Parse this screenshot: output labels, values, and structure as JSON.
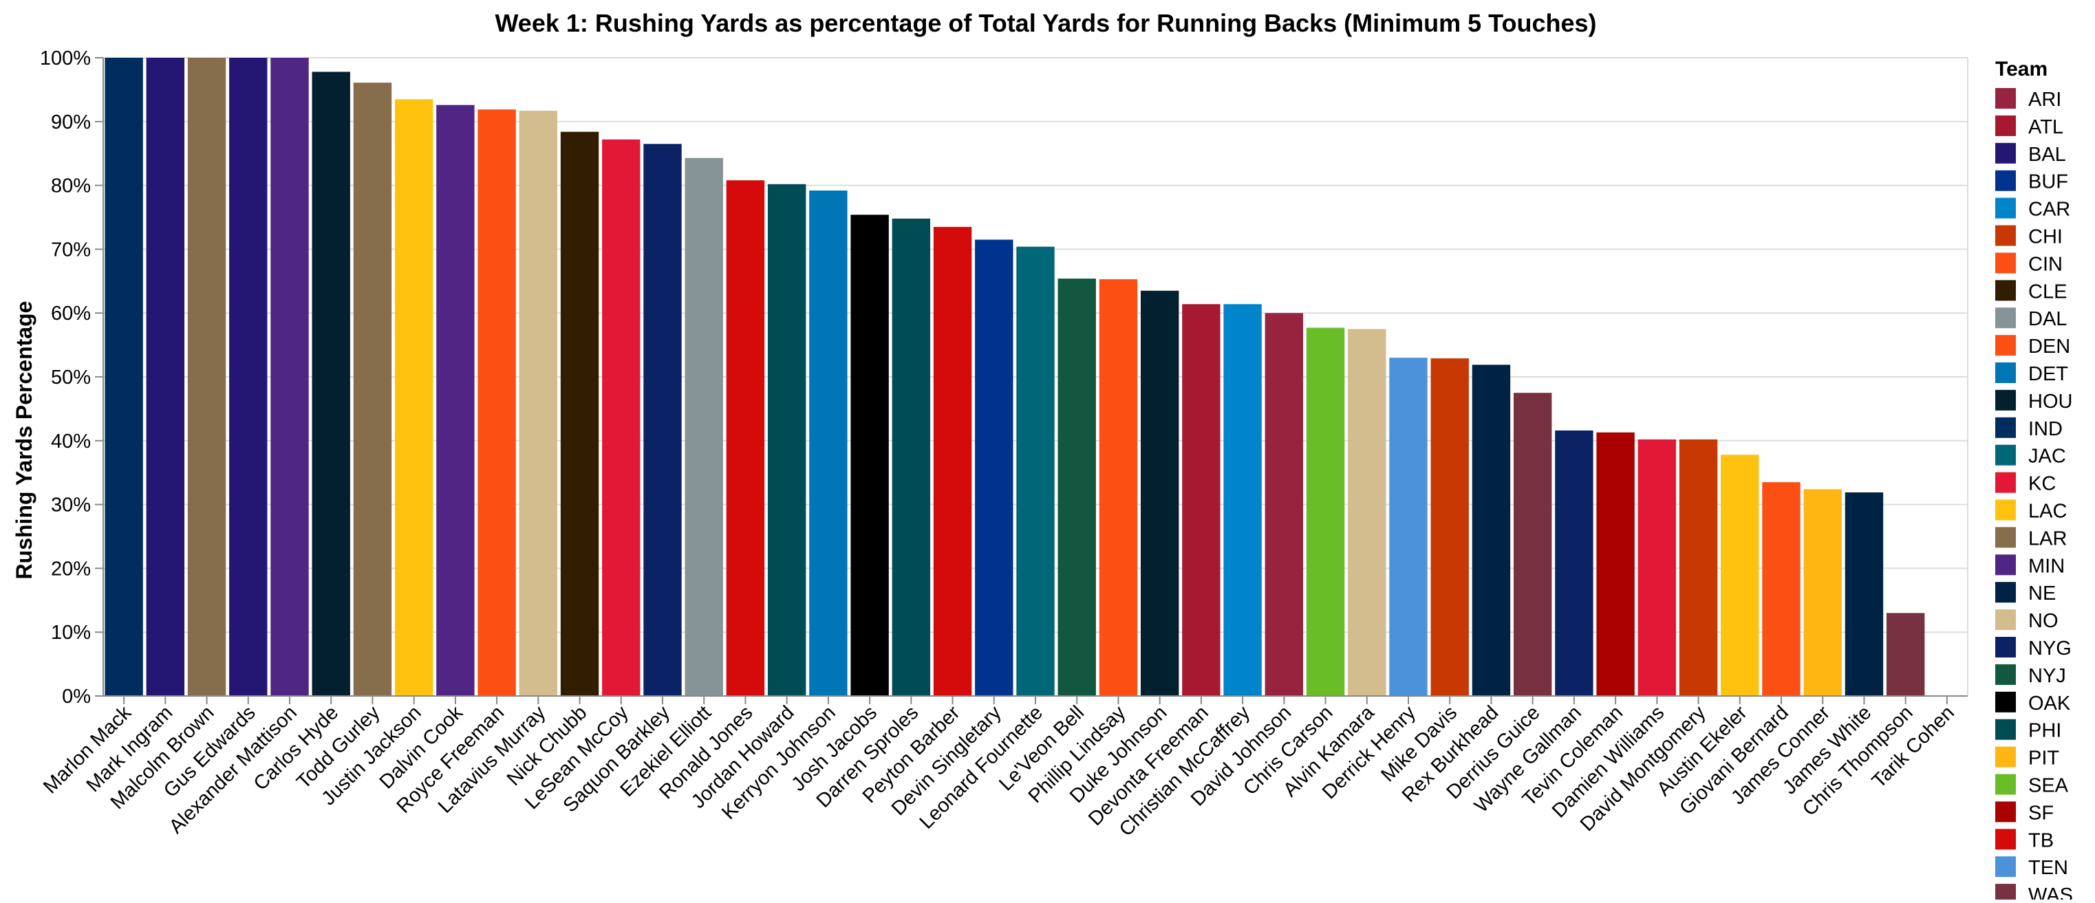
{
  "chart_data": {
    "type": "bar",
    "title": "Week 1: Rushing Yards as percentage of Total Yards for Running Backs (Minimum 5 Touches)",
    "xlabel": "",
    "ylabel": "Rushing Yards Percentage",
    "ylim": [
      0,
      100
    ],
    "y_ticks": [
      "0%",
      "10%",
      "20%",
      "30%",
      "40%",
      "50%",
      "60%",
      "70%",
      "80%",
      "90%",
      "100%"
    ],
    "grid": true,
    "legend": {
      "title": "Team",
      "position": "right",
      "entries": [
        {
          "team": "ARI",
          "color": "#97233F"
        },
        {
          "team": "ATL",
          "color": "#A71930"
        },
        {
          "team": "BAL",
          "color": "#241773"
        },
        {
          "team": "BUF",
          "color": "#00338D"
        },
        {
          "team": "CAR",
          "color": "#0085CA"
        },
        {
          "team": "CHI",
          "color": "#C83803"
        },
        {
          "team": "CIN",
          "color": "#FB4F14"
        },
        {
          "team": "CLE",
          "color": "#311D00"
        },
        {
          "team": "DAL",
          "color": "#869397"
        },
        {
          "team": "DEN",
          "color": "#FB4F14"
        },
        {
          "team": "DET",
          "color": "#0076B6"
        },
        {
          "team": "HOU",
          "color": "#03202F"
        },
        {
          "team": "IND",
          "color": "#002C5F"
        },
        {
          "team": "JAC",
          "color": "#006778"
        },
        {
          "team": "KC",
          "color": "#E31837"
        },
        {
          "team": "LAC",
          "color": "#FFC20E"
        },
        {
          "team": "LAR",
          "color": "#866D4B"
        },
        {
          "team": "MIN",
          "color": "#4F2683"
        },
        {
          "team": "NE",
          "color": "#002244"
        },
        {
          "team": "NO",
          "color": "#D3BC8D"
        },
        {
          "team": "NYG",
          "color": "#0B2265"
        },
        {
          "team": "NYJ",
          "color": "#125740"
        },
        {
          "team": "OAK",
          "color": "#000000"
        },
        {
          "team": "PHI",
          "color": "#004C54"
        },
        {
          "team": "PIT",
          "color": "#FFB612"
        },
        {
          "team": "SEA",
          "color": "#69BE28"
        },
        {
          "team": "SF",
          "color": "#AA0000"
        },
        {
          "team": "TB",
          "color": "#D50A0A"
        },
        {
          "team": "TEN",
          "color": "#4B92DB"
        },
        {
          "team": "WAS",
          "color": "#773141"
        }
      ]
    },
    "bars": [
      {
        "player": "Marlon Mack",
        "team": "IND",
        "value": 100
      },
      {
        "player": "Mark Ingram",
        "team": "BAL",
        "value": 100
      },
      {
        "player": "Malcolm Brown",
        "team": "LAR",
        "value": 100
      },
      {
        "player": "Gus Edwards",
        "team": "BAL",
        "value": 100
      },
      {
        "player": "Alexander Mattison",
        "team": "MIN",
        "value": 100
      },
      {
        "player": "Carlos Hyde",
        "team": "HOU",
        "value": 97.8
      },
      {
        "player": "Todd Gurley",
        "team": "LAR",
        "value": 96.1
      },
      {
        "player": "Justin Jackson",
        "team": "LAC",
        "value": 93.5
      },
      {
        "player": "Dalvin Cook",
        "team": "MIN",
        "value": 92.6
      },
      {
        "player": "Royce Freeman",
        "team": "DEN",
        "value": 91.9
      },
      {
        "player": "Latavius Murray",
        "team": "NO",
        "value": 91.7
      },
      {
        "player": "Nick Chubb",
        "team": "CLE",
        "value": 88.4
      },
      {
        "player": "LeSean McCoy",
        "team": "KC",
        "value": 87.2
      },
      {
        "player": "Saquon Barkley",
        "team": "NYG",
        "value": 86.5
      },
      {
        "player": "Ezekiel Elliott",
        "team": "DAL",
        "value": 84.3
      },
      {
        "player": "Ronald Jones",
        "team": "TB",
        "value": 80.8
      },
      {
        "player": "Jordan Howard",
        "team": "PHI",
        "value": 80.2
      },
      {
        "player": "Kerryon Johnson",
        "team": "DET",
        "value": 79.2
      },
      {
        "player": "Josh Jacobs",
        "team": "OAK",
        "value": 75.4
      },
      {
        "player": "Darren Sproles",
        "team": "PHI",
        "value": 74.8
      },
      {
        "player": "Peyton Barber",
        "team": "TB",
        "value": 73.5
      },
      {
        "player": "Devin Singletary",
        "team": "BUF",
        "value": 71.5
      },
      {
        "player": "Leonard Fournette",
        "team": "JAC",
        "value": 70.4
      },
      {
        "player": "Le'Veon Bell",
        "team": "NYJ",
        "value": 65.4
      },
      {
        "player": "Phillip Lindsay",
        "team": "DEN",
        "value": 65.3
      },
      {
        "player": "Duke Johnson",
        "team": "HOU",
        "value": 63.5
      },
      {
        "player": "Devonta Freeman",
        "team": "ATL",
        "value": 61.4
      },
      {
        "player": "Christian McCaffrey",
        "team": "CAR",
        "value": 61.4
      },
      {
        "player": "David Johnson",
        "team": "ARI",
        "value": 60.0
      },
      {
        "player": "Chris Carson",
        "team": "SEA",
        "value": 57.7
      },
      {
        "player": "Alvin Kamara",
        "team": "NO",
        "value": 57.5
      },
      {
        "player": "Derrick Henry",
        "team": "TEN",
        "value": 53.0
      },
      {
        "player": "Mike Davis",
        "team": "CHI",
        "value": 52.9
      },
      {
        "player": "Rex Burkhead",
        "team": "NE",
        "value": 51.9
      },
      {
        "player": "Derrius Guice",
        "team": "WAS",
        "value": 47.5
      },
      {
        "player": "Wayne Gallman",
        "team": "NYG",
        "value": 41.6
      },
      {
        "player": "Tevin Coleman",
        "team": "SF",
        "value": 41.3
      },
      {
        "player": "Damien Williams",
        "team": "KC",
        "value": 40.2
      },
      {
        "player": "David Montgomery",
        "team": "CHI",
        "value": 40.2
      },
      {
        "player": "Austin Ekeler",
        "team": "LAC",
        "value": 37.8
      },
      {
        "player": "Giovani Bernard",
        "team": "CIN",
        "value": 33.5
      },
      {
        "player": "James Conner",
        "team": "PIT",
        "value": 32.4
      },
      {
        "player": "James White",
        "team": "NE",
        "value": 31.9
      },
      {
        "player": "Chris Thompson",
        "team": "WAS",
        "value": 13.0
      },
      {
        "player": "Tarik Cohen",
        "team": "CHI",
        "value": 0
      }
    ]
  }
}
